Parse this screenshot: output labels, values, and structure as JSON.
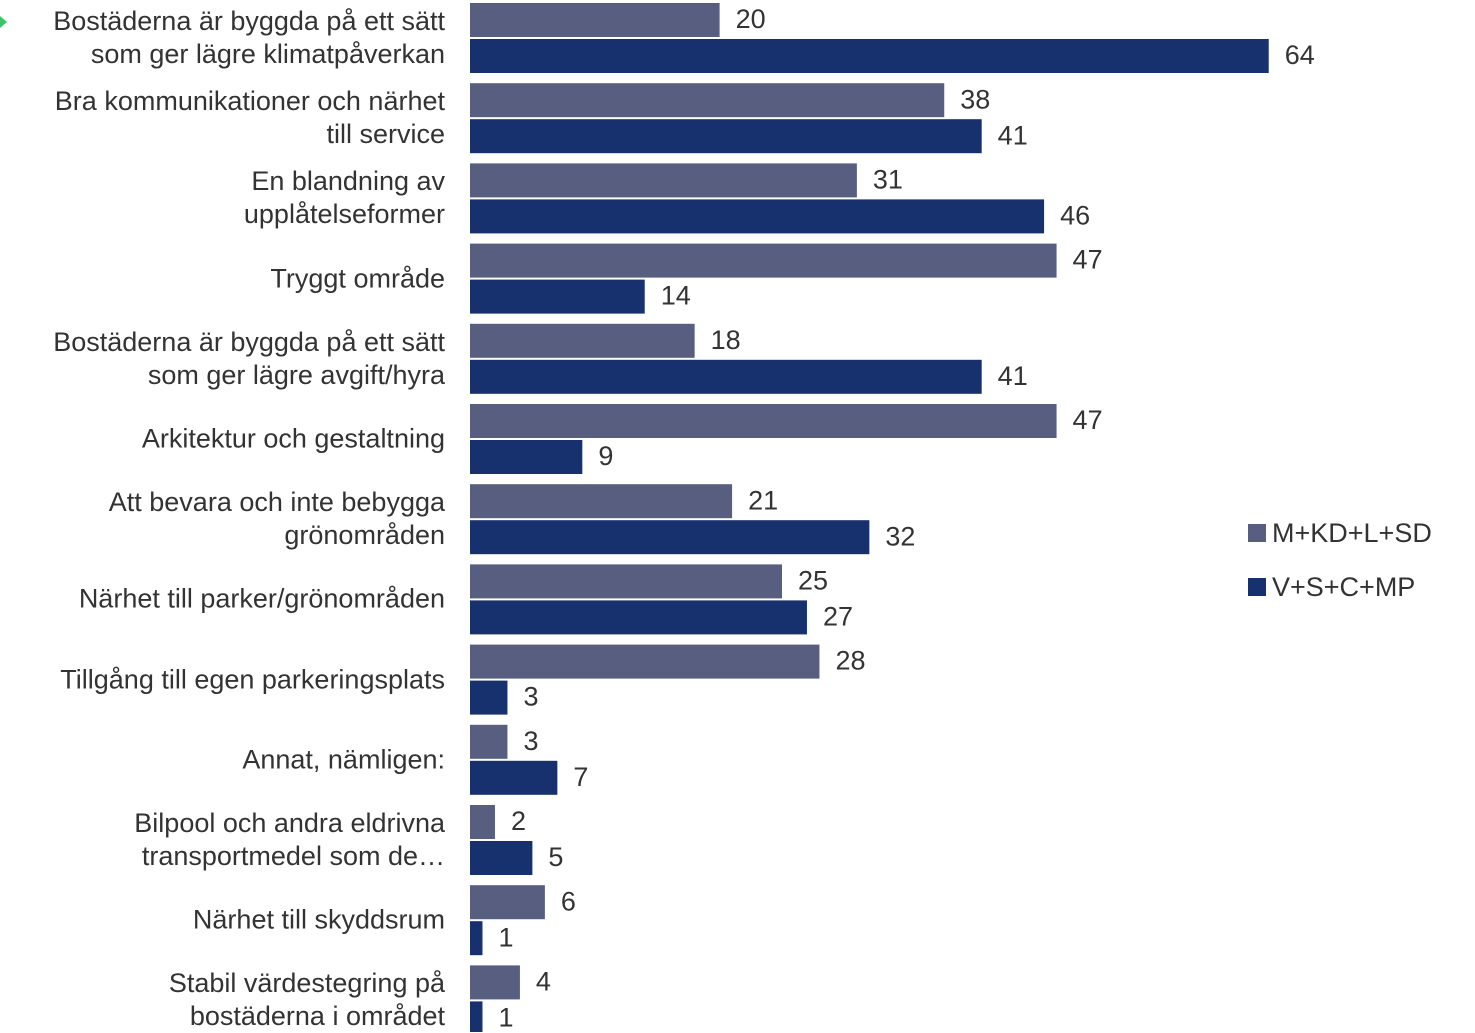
{
  "chart_data": {
    "type": "bar",
    "orientation": "horizontal",
    "categories": [
      "Bostäderna är byggda på ett sätt\nsom ger lägre klimatpåverkan",
      "Bra kommunikationer och närhet\ntill service",
      "En blandning av\nupplåtelseformer",
      "Tryggt område",
      "Bostäderna är byggda på ett sätt\nsom ger lägre avgift/hyra",
      "Arkitektur och gestaltning",
      "Att bevara och inte bebygga\ngrönområden",
      "Närhet till parker/grönområden",
      "Tillgång till egen parkeringsplats",
      "Annat, nämligen:",
      "Bilpool och andra eldrivna\ntransportmedel som de…",
      "Närhet till skyddsrum",
      "Stabil värdestegring på\nbostäderna i området"
    ],
    "series": [
      {
        "name": "M+KD+L+SD",
        "color": "#575e7f",
        "values": [
          20,
          38,
          31,
          47,
          18,
          47,
          21,
          25,
          28,
          3,
          2,
          6,
          4
        ]
      },
      {
        "name": "V+S+C+MP",
        "color": "#17306e",
        "values": [
          64,
          41,
          46,
          14,
          41,
          9,
          32,
          27,
          3,
          7,
          5,
          1,
          1
        ]
      }
    ],
    "xlim": [
      0,
      64
    ],
    "data_labels": true,
    "grid": false,
    "legend_position": "right",
    "title": "",
    "xlabel": "",
    "ylabel": ""
  }
}
